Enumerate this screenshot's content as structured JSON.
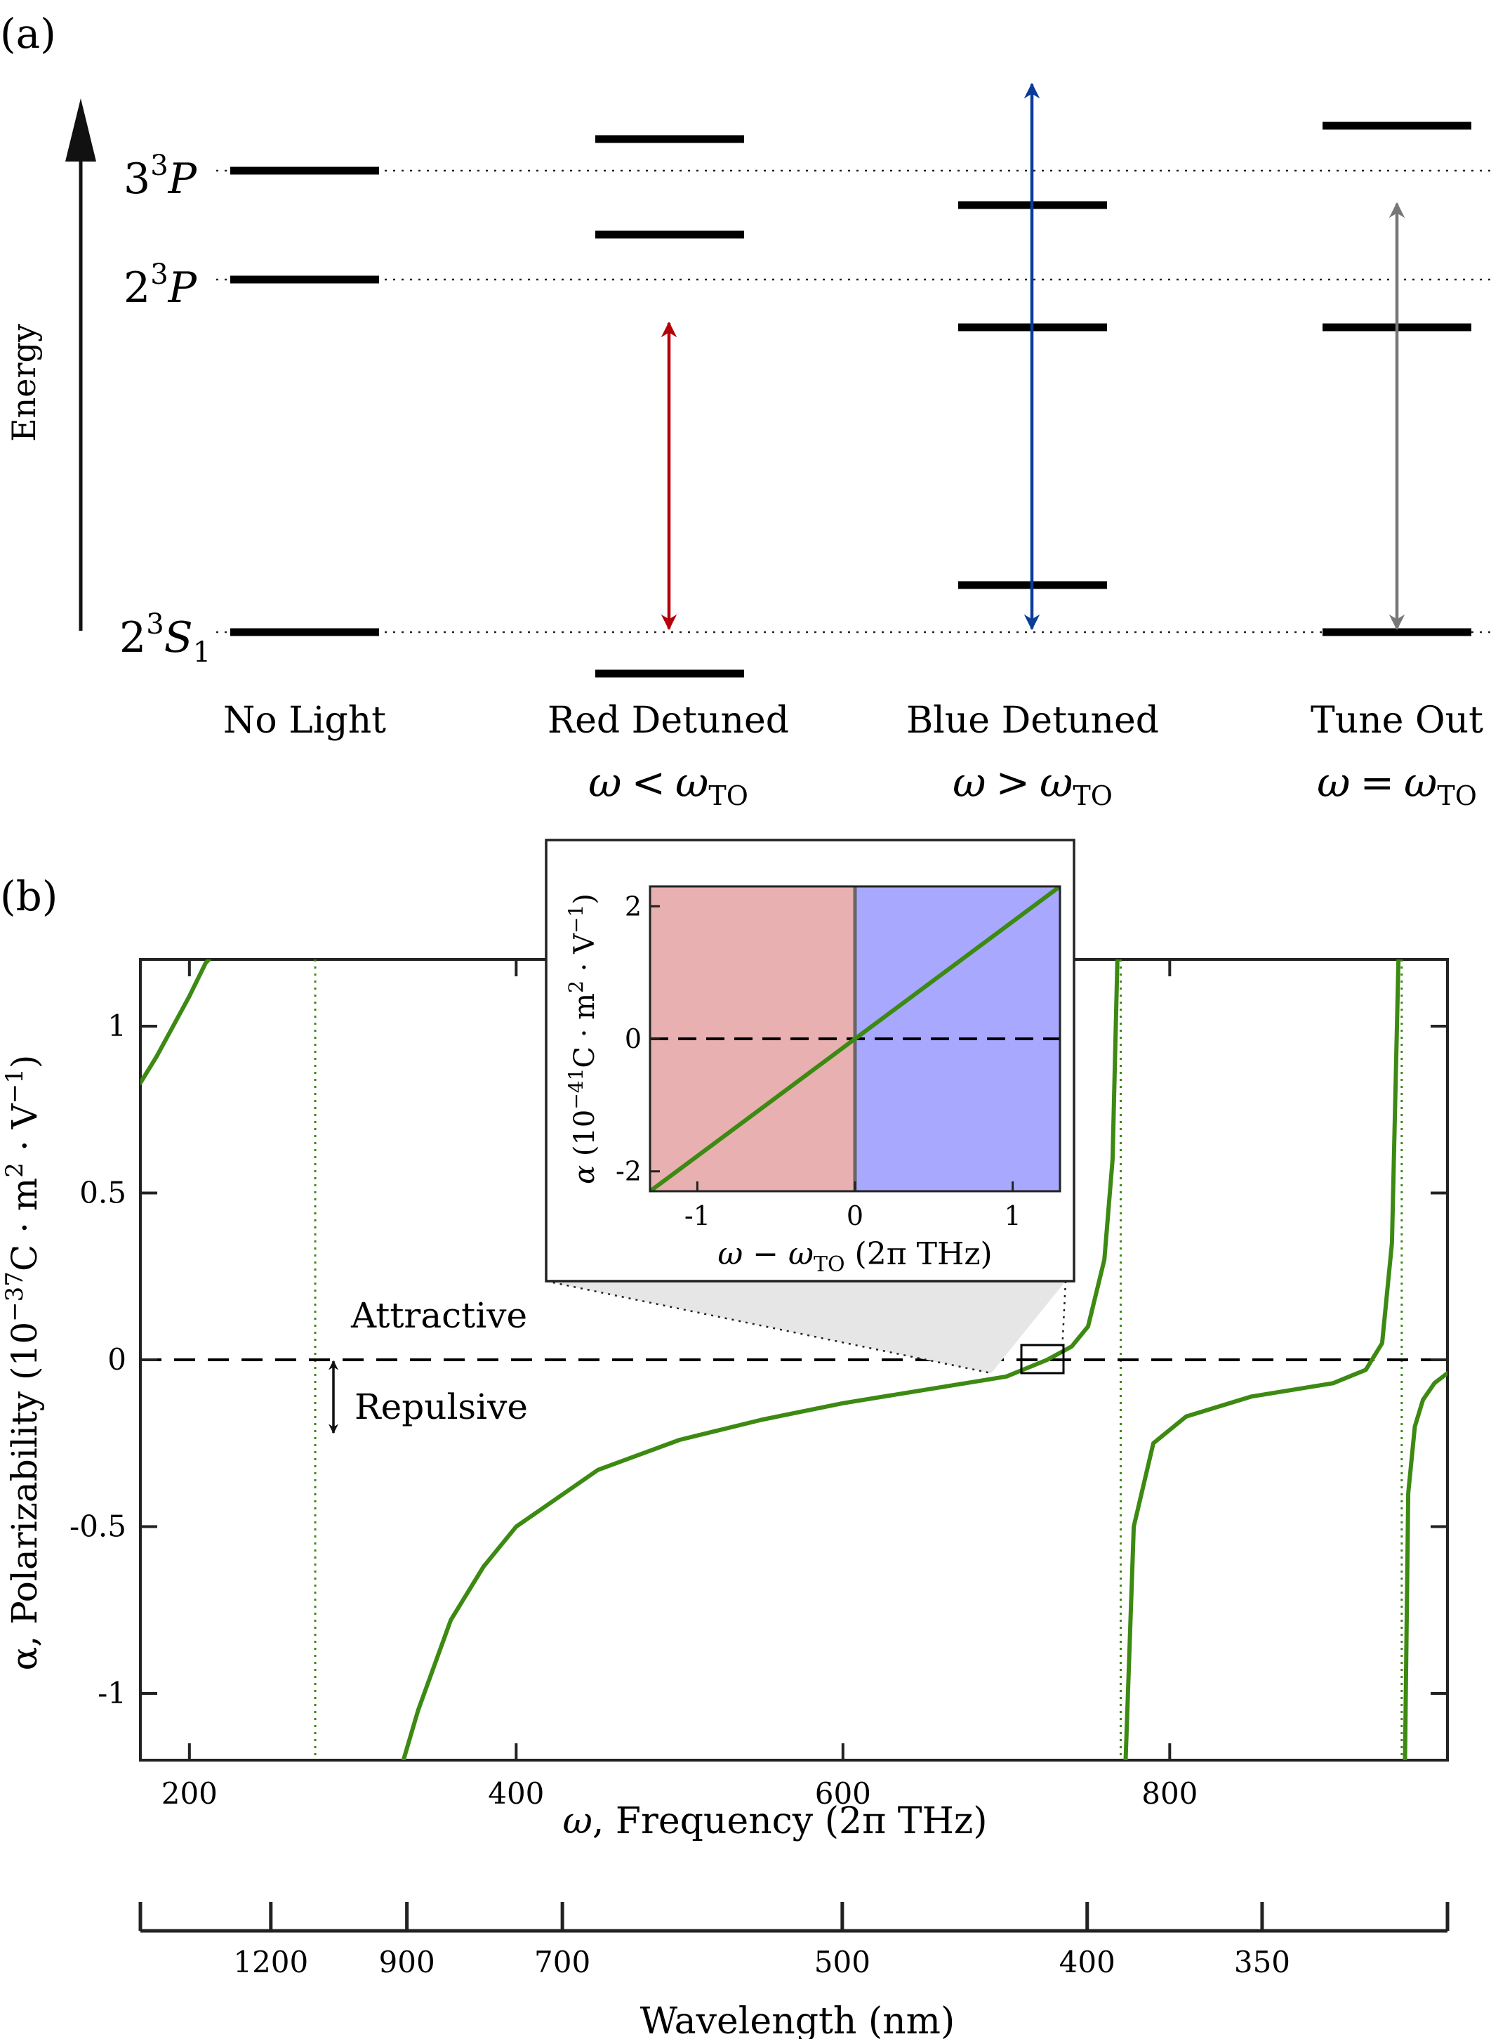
{
  "panel_a": {
    "label": "(a)",
    "energy_axis_label": "Energy",
    "levels": {
      "p3": {
        "main": "3",
        "sup": "3",
        "letter": "P"
      },
      "p2": {
        "main": "2",
        "sup": "3",
        "letter": "P"
      },
      "s1": {
        "main": "2",
        "sup": "3",
        "letter": "S",
        "sub": "1"
      }
    },
    "columns": [
      {
        "name": "No Light",
        "condition": null
      },
      {
        "name": "Red Detuned",
        "condition": {
          "w": "ω",
          "rel": "<",
          "sub": "TO"
        }
      },
      {
        "name": "Blue Detuned",
        "condition": {
          "w": "ω",
          "rel": ">",
          "sub": "TO"
        }
      },
      {
        "name": "Tune Out",
        "condition": {
          "w": "ω",
          "rel": "=",
          "sub": "TO"
        }
      }
    ],
    "arrow_colors": {
      "red": "#b5000a",
      "blue": "#0a3c9a",
      "gray": "#777777"
    }
  },
  "panel_b": {
    "label": "(b)",
    "ylabel_prefix": "α, Polarizability",
    "yunit": {
      "open": "(10",
      "exp": "−37",
      "mid": "C · m",
      "exp2": "2",
      "mid2": " · V",
      "exp3": "−1",
      "close": ")"
    },
    "xlabel": {
      "sym": "ω",
      "rest": ", Frequency  (2π THz)"
    },
    "x2label": "Wavelength (nm)",
    "annotations": {
      "attractive": "Attractive",
      "repulsive": "Repulsive"
    },
    "inset": {
      "xlabel": {
        "sym": "ω",
        "mid": " − ",
        "sym2": "ω",
        "sub": "TO",
        "rest": " (2π THz)"
      },
      "ylabel": {
        "sym": "α",
        "open": " (10",
        "exp": "−41",
        "mid": "C · m",
        "exp2": "2",
        "mid2": " · V",
        "exp3": "−1",
        "close": ")"
      },
      "colors": {
        "red_region": "#e8b0b0",
        "blue_region": "#a8a8ff",
        "line": "#3c8a12"
      }
    },
    "curve_color": "#3c8a12"
  },
  "chart_data": [
    {
      "type": "line",
      "xlabel": "ω, Frequency  (2π THz)",
      "ylabel": "α, Polarizability (10^−37 C·m²·V^−1)",
      "xlim": [
        170,
        970
      ],
      "ylim": [
        -1.2,
        1.2
      ],
      "xticks": [
        200,
        400,
        600,
        800
      ],
      "yticks": [
        -1,
        -0.5,
        0,
        0.5,
        1
      ],
      "ytick_labels": [
        "-1",
        "-0.5",
        "0",
        "0.5",
        "1"
      ],
      "resonances": [
        277,
        770,
        942
      ],
      "tune_out": 725,
      "secondary_axis": {
        "label": "Wavelength (nm)",
        "ticks": [
          1200,
          900,
          700,
          500,
          400,
          350
        ],
        "tick_labels": [
          "1200",
          "900",
          "700",
          "500",
          "400",
          "350"
        ]
      },
      "series": [
        {
          "x": [
            170,
            180,
            190,
            200,
            210,
            212
          ],
          "y": [
            0.83,
            0.91,
            1.0,
            1.09,
            1.19,
            1.2
          ]
        },
        {
          "x": [
            331,
            340,
            360,
            380,
            400,
            450,
            500,
            550,
            600,
            650,
            700,
            725,
            740,
            750,
            760,
            765,
            768
          ],
          "y": [
            -1.2,
            -1.05,
            -0.78,
            -0.62,
            -0.5,
            -0.33,
            -0.24,
            -0.18,
            -0.13,
            -0.09,
            -0.05,
            0.0,
            0.04,
            0.1,
            0.3,
            0.6,
            1.2
          ]
        },
        {
          "x": [
            773,
            778,
            790,
            810,
            850,
            900,
            920,
            930,
            936,
            940
          ],
          "y": [
            -1.2,
            -0.5,
            -0.25,
            -0.17,
            -0.11,
            -0.07,
            -0.03,
            0.05,
            0.35,
            1.2
          ]
        },
        {
          "x": [
            944,
            946,
            950,
            955,
            962,
            970
          ],
          "y": [
            -1.2,
            -0.4,
            -0.2,
            -0.12,
            -0.07,
            -0.04
          ]
        }
      ]
    },
    {
      "type": "line",
      "title": "inset",
      "xlabel": "ω − ω_TO (2π THz)",
      "ylabel": "α (10^−41 C·m²·V^−1)",
      "xlim": [
        -1.3,
        1.3
      ],
      "ylim": [
        -2.3,
        2.3
      ],
      "xticks": [
        -1,
        0,
        1
      ],
      "yticks": [
        -2,
        0,
        2
      ],
      "series": [
        {
          "x": [
            -1.3,
            1.3
          ],
          "y": [
            -2.3,
            2.3
          ]
        }
      ]
    }
  ]
}
